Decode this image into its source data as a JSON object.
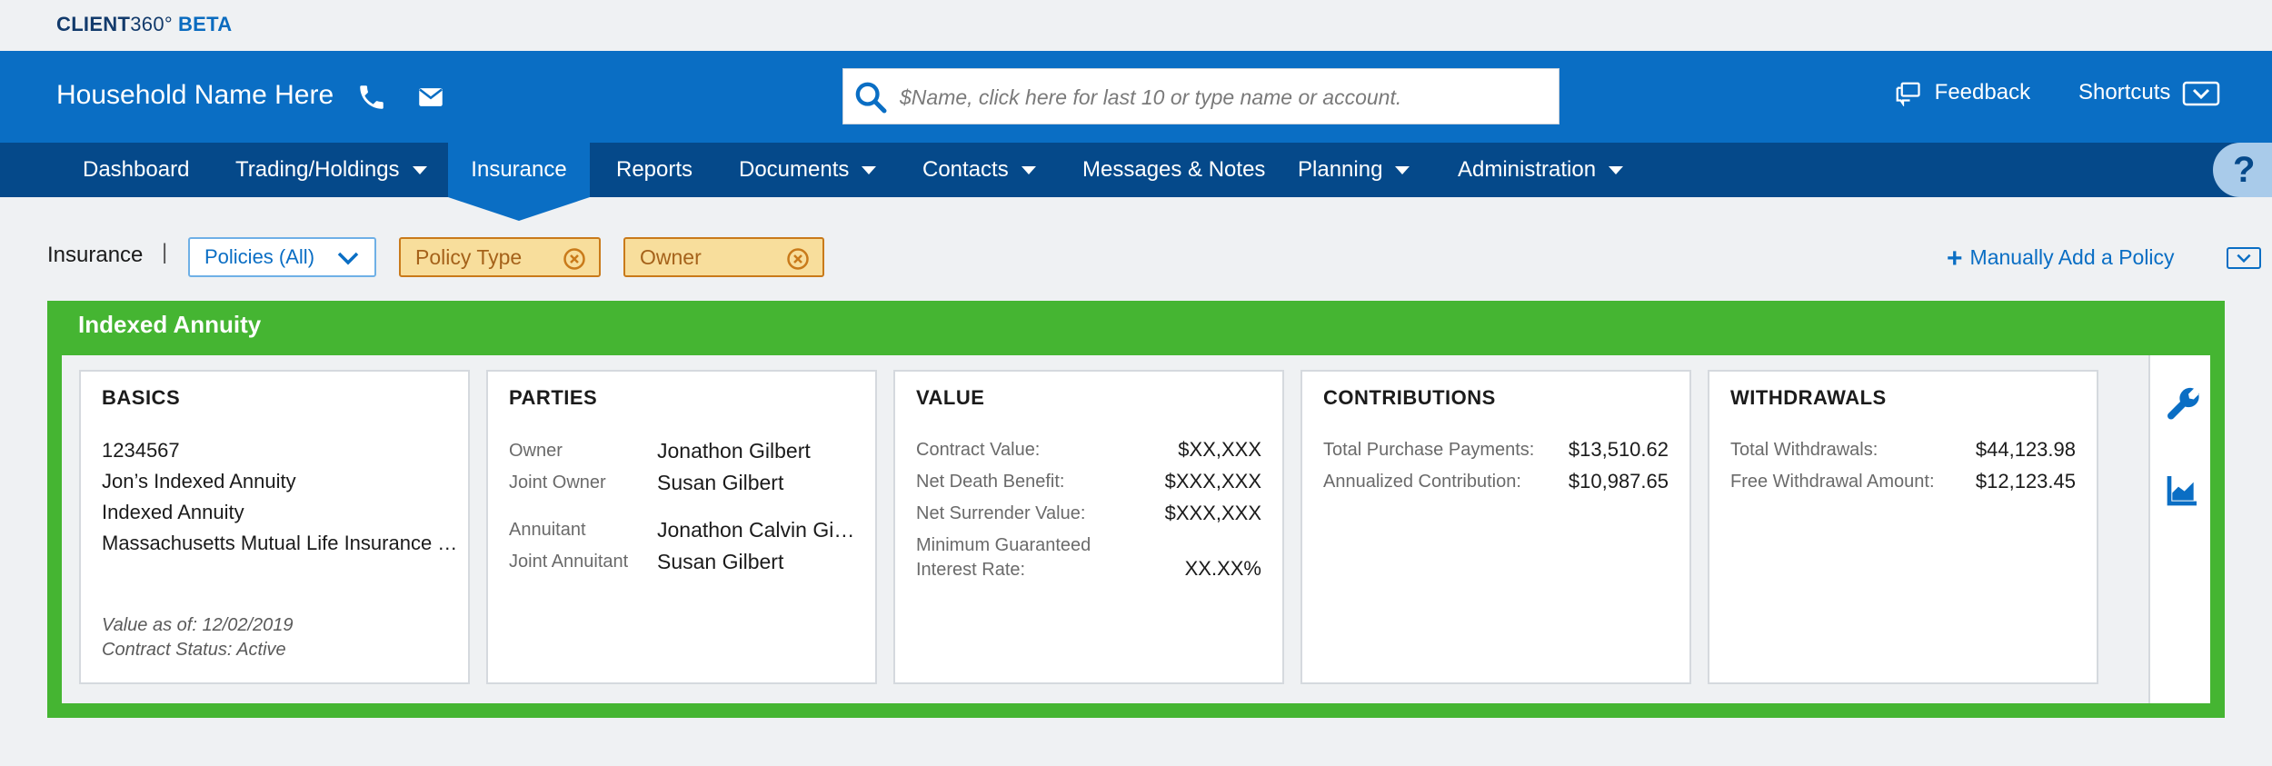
{
  "brand": {
    "name": "CLIENT",
    "version": "360°",
    "tag": "BETA"
  },
  "header": {
    "household": "Household Name Here",
    "search_placeholder": "$Name, click here for last 10 or type name or account.",
    "feedback": "Feedback",
    "shortcuts": "Shortcuts"
  },
  "nav": {
    "items": [
      {
        "label": "Dashboard"
      },
      {
        "label": "Trading/Holdings"
      },
      {
        "label": "Insurance"
      },
      {
        "label": "Reports"
      },
      {
        "label": "Documents"
      },
      {
        "label": "Contacts"
      },
      {
        "label": "Messages & Notes"
      },
      {
        "label": "Planning"
      },
      {
        "label": "Administration"
      }
    ],
    "active": "Insurance",
    "help": "?"
  },
  "filters": {
    "label": "Insurance",
    "separator": "|",
    "policies": "Policies (All)",
    "chips": [
      "Policy Type",
      "Owner"
    ],
    "add_policy": "Manually Add a Policy"
  },
  "policy": {
    "title": "Indexed Annuity",
    "basics": {
      "heading": "BASICS",
      "lines": [
        "1234567",
        "Jon’s Indexed Annuity",
        "Indexed Annuity",
        "Massachusetts Mutual Life Insurance Company"
      ],
      "value_as_of": "Value as of: 12/02/2019",
      "status": "Contract Status: Active"
    },
    "parties": {
      "heading": "PARTIES",
      "rows": [
        {
          "label": "Owner",
          "value": "Jonathon Gilbert"
        },
        {
          "label": "Joint Owner",
          "value": "Susan Gilbert"
        },
        {
          "label": "Annuitant",
          "value": "Jonathon Calvin Gilbert"
        },
        {
          "label": "Joint Annuitant",
          "value": "Susan Gilbert"
        }
      ]
    },
    "value": {
      "heading": "VALUE",
      "rows": [
        {
          "label": "Contract Value:",
          "value": "$XX,XXX"
        },
        {
          "label": "Net Death Benefit:",
          "value": "$XXX,XXX"
        },
        {
          "label": "Net Surrender Value:",
          "value": "$XXX,XXX"
        },
        {
          "label": "Minimum Guaranteed",
          "label2": "Interest Rate:",
          "value": "XX.XX%"
        }
      ]
    },
    "contributions": {
      "heading": "CONTRIBUTIONS",
      "rows": [
        {
          "label": "Total Purchase Payments:",
          "value": "$13,510.62"
        },
        {
          "label": "Annualized Contribution:",
          "value": "$10,987.65"
        }
      ]
    },
    "withdrawals": {
      "heading": "WITHDRAWALS",
      "rows": [
        {
          "label": "Total Withdrawals:",
          "value": "$44,123.98"
        },
        {
          "label": "Free Withdrawal Amount:",
          "value": "$12,123.45"
        }
      ]
    }
  },
  "colors": {
    "primary_blue": "#0a6ec4",
    "nav_blue": "#05498a",
    "annuity_green": "#45b532",
    "chip_fill": "#f8de9c",
    "chip_border": "#c97a1a"
  },
  "icons": [
    "phone-icon",
    "mail-icon",
    "search-icon",
    "feedback-icon",
    "chevron-down-icon",
    "close-circle-icon",
    "plus-icon",
    "wrench-icon",
    "chart-icon",
    "help-icon"
  ]
}
